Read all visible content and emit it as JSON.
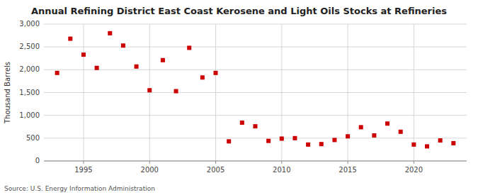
{
  "chart_data": {
    "type": "scatter",
    "title": "Annual Refining District East Coast Kerosene and Light Oils Stocks at Refineries",
    "ylabel": "Thousand Barrels",
    "source": "Source: U.S. Energy Information Administration",
    "x": [
      1993,
      1994,
      1995,
      1996,
      1997,
      1998,
      1999,
      2000,
      2001,
      2002,
      2003,
      2004,
      2005,
      2006,
      2007,
      2008,
      2009,
      2010,
      2011,
      2012,
      2013,
      2014,
      2015,
      2016,
      2017,
      2018,
      2019,
      2020,
      2021,
      2022,
      2023
    ],
    "values": [
      1930,
      2680,
      2330,
      2040,
      2800,
      2530,
      2070,
      1550,
      2210,
      1530,
      2480,
      1830,
      1930,
      430,
      840,
      760,
      440,
      490,
      500,
      360,
      370,
      460,
      540,
      740,
      560,
      820,
      640,
      360,
      320,
      450,
      390
    ],
    "color": "#cc0000",
    "marker": "square",
    "xlim": [
      1992.0,
      2024.0
    ],
    "xticks": [
      1995,
      2000,
      2005,
      2010,
      2015,
      2020
    ],
    "ylim": [
      0,
      3000
    ],
    "yticks": [
      0,
      500,
      {
        "value": 1000,
        "label": "1,000"
      },
      {
        "value": 1500,
        "label": "1,500"
      },
      {
        "value": 2000,
        "label": "2,000"
      },
      {
        "value": 2500,
        "label": "2,500"
      },
      {
        "value": 3000,
        "label": "3,000"
      }
    ],
    "grid": true
  }
}
